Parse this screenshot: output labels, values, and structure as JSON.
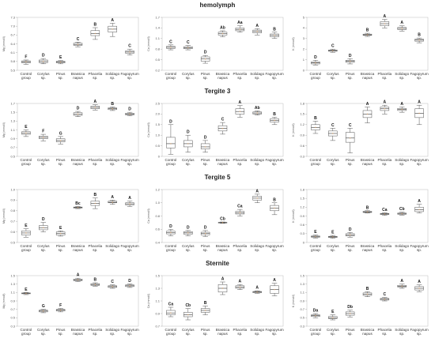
{
  "sections": [
    {
      "title": "hemolymph"
    },
    {
      "title": "Tergite 3"
    },
    {
      "title": "Tergite 5"
    },
    {
      "title": "Sternite"
    }
  ],
  "chart_data": [
    {
      "type": "box",
      "row": 0,
      "col": 0,
      "ylabel": "Mg (mmol/l)",
      "ylim": [
        5.5,
        7.3
      ],
      "yticks": [
        "5.5",
        "5.8",
        "6.1",
        "6.4",
        "6.7",
        "7.0",
        "7.3"
      ],
      "categories": [
        "Control group",
        "Corylus sp.",
        "Pinus sp.",
        "Brassica napus",
        "Phacelia sp.",
        "Solidago sp.",
        "Fagopyrum sp."
      ],
      "boxes": [
        {
          "min": 5.7,
          "q1": 5.75,
          "median": 5.79,
          "q3": 5.82,
          "max": 5.85
        },
        {
          "min": 5.72,
          "q1": 5.76,
          "median": 5.8,
          "q3": 5.85,
          "max": 5.9
        },
        {
          "min": 5.72,
          "q1": 5.75,
          "median": 5.78,
          "q3": 5.81,
          "max": 5.83
        },
        {
          "min": 6.3,
          "q1": 6.35,
          "median": 6.38,
          "q3": 6.42,
          "max": 6.46
        },
        {
          "min": 6.55,
          "q1": 6.68,
          "median": 6.75,
          "q3": 6.85,
          "max": 6.95
        },
        {
          "min": 6.65,
          "q1": 6.8,
          "median": 6.9,
          "q3": 7.0,
          "max": 7.1
        },
        {
          "min": 6.02,
          "q1": 6.08,
          "median": 6.12,
          "q3": 6.16,
          "max": 6.22
        }
      ],
      "letters": [
        "F",
        "D",
        "E",
        "C",
        "B",
        "A",
        "C"
      ]
    },
    {
      "type": "box",
      "row": 0,
      "col": 1,
      "ylabel": "Ca (mmol/l)",
      "ylim": [
        0.2,
        1.7
      ],
      "yticks": [
        "0.2",
        "0.5",
        "0.8",
        "1.1",
        "1.4",
        "1.7"
      ],
      "categories": [
        "Control group",
        "Corylus sp.",
        "Pinus sp.",
        "Brassica napus",
        "Phacelia sp.",
        "Solidago sp.",
        "Fagopyrum sp."
      ],
      "boxes": [
        {
          "min": 0.78,
          "q1": 0.82,
          "median": 0.85,
          "q3": 0.88,
          "max": 0.92
        },
        {
          "min": 0.78,
          "q1": 0.81,
          "median": 0.84,
          "q3": 0.87,
          "max": 0.9
        },
        {
          "min": 0.4,
          "q1": 0.46,
          "median": 0.52,
          "q3": 0.58,
          "max": 0.62
        },
        {
          "min": 1.15,
          "q1": 1.2,
          "median": 1.24,
          "q3": 1.28,
          "max": 1.32
        },
        {
          "min": 1.28,
          "q1": 1.32,
          "median": 1.36,
          "q3": 1.4,
          "max": 1.46
        },
        {
          "min": 1.2,
          "q1": 1.26,
          "median": 1.3,
          "q3": 1.34,
          "max": 1.38
        },
        {
          "min": 1.1,
          "q1": 1.15,
          "median": 1.19,
          "q3": 1.23,
          "max": 1.28
        }
      ],
      "letters": [
        "C",
        "C",
        "D",
        "Ab",
        "Aa",
        "A",
        "B"
      ]
    },
    {
      "type": "box",
      "row": 0,
      "col": 2,
      "ylabel": "K (mmol/l)",
      "ylim": [
        0,
        5
      ],
      "yticks": [
        "0",
        "1",
        "2",
        "3",
        "4",
        "5"
      ],
      "categories": [
        "Control group",
        "Corylus sp.",
        "Pinus sp.",
        "Brassica napus",
        "Phacelia sp.",
        "Solidago sp.",
        "Fagopyrum sp."
      ],
      "boxes": [
        {
          "min": 0.5,
          "q1": 0.6,
          "median": 0.7,
          "q3": 0.8,
          "max": 0.95
        },
        {
          "min": 1.7,
          "q1": 1.8,
          "median": 1.86,
          "q3": 1.92,
          "max": 2.0
        },
        {
          "min": 0.6,
          "q1": 0.75,
          "median": 0.85,
          "q3": 0.95,
          "max": 1.1
        },
        {
          "min": 3.2,
          "q1": 3.3,
          "median": 3.35,
          "q3": 3.42,
          "max": 3.5
        },
        {
          "min": 4.0,
          "q1": 4.2,
          "median": 4.4,
          "q3": 4.6,
          "max": 4.8
        },
        {
          "min": 3.7,
          "q1": 3.85,
          "median": 3.95,
          "q3": 4.05,
          "max": 4.2
        },
        {
          "min": 2.6,
          "q1": 2.75,
          "median": 2.85,
          "q3": 2.95,
          "max": 3.05
        }
      ],
      "letters": [
        "D",
        "C",
        "D",
        "B",
        "A",
        "A",
        "B"
      ]
    },
    {
      "type": "box",
      "row": 1,
      "col": 0,
      "ylabel": "Mg (mmol/l)",
      "ylim": [
        0.5,
        1.7
      ],
      "yticks": [
        "0.5",
        "0.7",
        "0.9",
        "1.1",
        "1.3",
        "1.5",
        "1.7"
      ],
      "categories": [
        "Control group",
        "Corylus sp.",
        "Pinus sp.",
        "Brassica napus",
        "Phacelia sp.",
        "Solidago sp.",
        "Fagopyrum sp."
      ],
      "boxes": [
        {
          "min": 0.95,
          "q1": 1.0,
          "median": 1.03,
          "q3": 1.06,
          "max": 1.1
        },
        {
          "min": 0.85,
          "q1": 0.9,
          "median": 0.93,
          "q3": 0.96,
          "max": 1.0
        },
        {
          "min": 0.78,
          "q1": 0.83,
          "median": 0.86,
          "q3": 0.9,
          "max": 0.95
        },
        {
          "min": 1.4,
          "q1": 1.43,
          "median": 1.46,
          "q3": 1.49,
          "max": 1.52
        },
        {
          "min": 1.55,
          "q1": 1.58,
          "median": 1.61,
          "q3": 1.64,
          "max": 1.67
        },
        {
          "min": 1.54,
          "q1": 1.56,
          "median": 1.58,
          "q3": 1.6,
          "max": 1.62
        },
        {
          "min": 1.42,
          "q1": 1.44,
          "median": 1.46,
          "q3": 1.48,
          "max": 1.5
        }
      ],
      "letters": [
        "E",
        "F",
        "G",
        "D",
        "A",
        "B",
        "D"
      ]
    },
    {
      "type": "box",
      "row": 1,
      "col": 1,
      "ylabel": "Ca (mmol/l)",
      "ylim": [
        0,
        2.5
      ],
      "yticks": [
        "0",
        "0.5",
        "1.0",
        "1.5",
        "2.0",
        "2.5"
      ],
      "categories": [
        "Control group",
        "Corylus sp.",
        "Pinus sp.",
        "Brassica napus",
        "Phacelia sp.",
        "Solidago sp.",
        "Fagopyrum sp."
      ],
      "boxes": [
        {
          "min": 0.1,
          "q1": 0.4,
          "median": 0.6,
          "q3": 0.9,
          "max": 1.5
        },
        {
          "min": 0.2,
          "q1": 0.45,
          "median": 0.6,
          "q3": 0.75,
          "max": 1.0
        },
        {
          "min": 0.2,
          "q1": 0.35,
          "median": 0.45,
          "q3": 0.6,
          "max": 0.75
        },
        {
          "min": 1.05,
          "q1": 1.2,
          "median": 1.32,
          "q3": 1.45,
          "max": 1.6
        },
        {
          "min": 1.85,
          "q1": 2.0,
          "median": 2.12,
          "q3": 2.25,
          "max": 2.4
        },
        {
          "min": 1.95,
          "q1": 2.0,
          "median": 2.05,
          "q3": 2.1,
          "max": 2.15
        },
        {
          "min": 1.5,
          "q1": 1.62,
          "median": 1.7,
          "q3": 1.78,
          "max": 1.85
        }
      ],
      "letters": [
        "D",
        "D",
        "D",
        "C",
        "A",
        "Ab",
        "B"
      ]
    },
    {
      "type": "box",
      "row": 1,
      "col": 2,
      "ylabel": "K (mmol/l)",
      "ylim": [
        0.3,
        1.8
      ],
      "yticks": [
        "0.3",
        "0.6",
        "0.9",
        "1.2",
        "1.5",
        "1.8"
      ],
      "categories": [
        "Control group",
        "Corylus sp.",
        "Pinus sp.",
        "Brassica napus",
        "Phacelia sp.",
        "Solidago sp.",
        "Fagopyrum sp."
      ],
      "boxes": [
        {
          "min": 0.95,
          "q1": 1.05,
          "median": 1.12,
          "q3": 1.2,
          "max": 1.3
        },
        {
          "min": 0.75,
          "q1": 0.88,
          "median": 0.95,
          "q3": 1.02,
          "max": 1.1
        },
        {
          "min": 0.4,
          "q1": 0.7,
          "median": 0.82,
          "q3": 0.98,
          "max": 1.1
        },
        {
          "min": 1.25,
          "q1": 1.4,
          "median": 1.5,
          "q3": 1.6,
          "max": 1.7
        },
        {
          "min": 1.5,
          "q1": 1.6,
          "median": 1.65,
          "q3": 1.7,
          "max": 1.75
        },
        {
          "min": 1.55,
          "q1": 1.6,
          "median": 1.63,
          "q3": 1.66,
          "max": 1.7
        },
        {
          "min": 1.2,
          "q1": 1.4,
          "median": 1.52,
          "q3": 1.65,
          "max": 1.75
        }
      ],
      "letters": [
        "B",
        "C",
        "C",
        "A",
        "A",
        "A",
        "A"
      ]
    },
    {
      "type": "box",
      "row": 2,
      "col": 0,
      "ylabel": "Mg (mmol/l)",
      "ylim": [
        0.5,
        1.0
      ],
      "yticks": [
        "0.5",
        "0.6",
        "0.7",
        "0.8",
        "0.9",
        "1.0"
      ],
      "categories": [
        "Control group",
        "Corylus sp.",
        "Pinus sp.",
        "Brassica napus",
        "Phacelia sp.",
        "Solidago sp.",
        "Fagopyrum sp."
      ],
      "boxes": [
        {
          "min": 0.55,
          "q1": 0.57,
          "median": 0.59,
          "q3": 0.61,
          "max": 0.63
        },
        {
          "min": 0.6,
          "q1": 0.62,
          "median": 0.64,
          "q3": 0.66,
          "max": 0.69
        },
        {
          "min": 0.56,
          "q1": 0.57,
          "median": 0.585,
          "q3": 0.6,
          "max": 0.61
        },
        {
          "min": 0.82,
          "q1": 0.825,
          "median": 0.83,
          "q3": 0.835,
          "max": 0.84
        },
        {
          "min": 0.82,
          "q1": 0.85,
          "median": 0.87,
          "q3": 0.89,
          "max": 0.92
        },
        {
          "min": 0.86,
          "q1": 0.875,
          "median": 0.88,
          "q3": 0.89,
          "max": 0.9
        },
        {
          "min": 0.84,
          "q1": 0.855,
          "median": 0.865,
          "q3": 0.875,
          "max": 0.89
        }
      ],
      "letters": [
        "E",
        "D",
        "E",
        "Bc",
        "B",
        "A",
        "A"
      ]
    },
    {
      "type": "box",
      "row": 2,
      "col": 1,
      "ylabel": "Ca (mmol/l)",
      "ylim": [
        0.4,
        1.2
      ],
      "yticks": [
        "0.4",
        "0.6",
        "0.8",
        "1.0",
        "1.2"
      ],
      "categories": [
        "Control group",
        "Corylus sp.",
        "Pinus sp.",
        "Brassica napus",
        "Phacelia sp.",
        "Solidago sp.",
        "Fagopyrum sp."
      ],
      "boxes": [
        {
          "min": 0.5,
          "q1": 0.53,
          "median": 0.55,
          "q3": 0.57,
          "max": 0.6
        },
        {
          "min": 0.5,
          "q1": 0.525,
          "median": 0.545,
          "q3": 0.565,
          "max": 0.58
        },
        {
          "min": 0.49,
          "q1": 0.515,
          "median": 0.535,
          "q3": 0.555,
          "max": 0.58
        },
        {
          "min": 0.69,
          "q1": 0.695,
          "median": 0.7,
          "q3": 0.705,
          "max": 0.71
        },
        {
          "min": 0.8,
          "q1": 0.83,
          "median": 0.85,
          "q3": 0.87,
          "max": 0.9
        },
        {
          "min": 1.0,
          "q1": 1.04,
          "median": 1.07,
          "q3": 1.1,
          "max": 1.13
        },
        {
          "min": 0.82,
          "q1": 0.88,
          "median": 0.92,
          "q3": 0.96,
          "max": 1.0
        }
      ],
      "letters": [
        "D",
        "D",
        "D",
        "Cb",
        "Ca",
        "A",
        "B"
      ]
    },
    {
      "type": "box",
      "row": 2,
      "col": 2,
      "ylabel": "K (mmol/l)",
      "ylim": [
        0,
        1.8
      ],
      "yticks": [
        "0",
        "0.3",
        "0.6",
        "0.9",
        "1.2",
        "1.5",
        "1.8"
      ],
      "categories": [
        "Control group",
        "Corylus sp.",
        "Pinus sp.",
        "Brassica napus",
        "Phacelia sp.",
        "Solidago sp.",
        "Fagopyrum sp."
      ],
      "boxes": [
        {
          "min": 0.15,
          "q1": 0.18,
          "median": 0.2,
          "q3": 0.22,
          "max": 0.25
        },
        {
          "min": 0.14,
          "q1": 0.17,
          "median": 0.19,
          "q3": 0.21,
          "max": 0.24
        },
        {
          "min": 0.18,
          "q1": 0.22,
          "median": 0.26,
          "q3": 0.3,
          "max": 0.34
        },
        {
          "min": 1.0,
          "q1": 1.02,
          "median": 1.04,
          "q3": 1.06,
          "max": 1.08
        },
        {
          "min": 0.92,
          "q1": 0.95,
          "median": 0.97,
          "q3": 0.99,
          "max": 1.01
        },
        {
          "min": 0.93,
          "q1": 0.96,
          "median": 0.98,
          "q3": 1.0,
          "max": 1.03
        },
        {
          "min": 1.0,
          "q1": 1.05,
          "median": 1.12,
          "q3": 1.2,
          "max": 1.3
        }
      ],
      "letters": [
        "E",
        "E",
        "D",
        "B",
        "Ca",
        "Cb",
        "A"
      ]
    },
    {
      "type": "box",
      "row": 3,
      "col": 0,
      "ylabel": "Mg (mmol/l)",
      "ylim": [
        0.3,
        1.5
      ],
      "yticks": [
        "0.3",
        "0.5",
        "0.7",
        "0.9",
        "1.1",
        "1.3",
        "1.5"
      ],
      "categories": [
        "Control group",
        "Corylus sp.",
        "Pinus sp.",
        "Brassica napus",
        "Phacelia sp.",
        "Solidago sp.",
        "Fagopyrum sp."
      ],
      "boxes": [
        {
          "min": 1.05,
          "q1": 1.07,
          "median": 1.08,
          "q3": 1.09,
          "max": 1.1
        },
        {
          "min": 0.62,
          "q1": 0.64,
          "median": 0.66,
          "q3": 0.68,
          "max": 0.7
        },
        {
          "min": 0.64,
          "q1": 0.66,
          "median": 0.68,
          "q3": 0.7,
          "max": 0.72
        },
        {
          "min": 1.36,
          "q1": 1.38,
          "median": 1.4,
          "q3": 1.42,
          "max": 1.44
        },
        {
          "min": 1.25,
          "q1": 1.27,
          "median": 1.29,
          "q3": 1.31,
          "max": 1.33
        },
        {
          "min": 1.2,
          "q1": 1.22,
          "median": 1.24,
          "q3": 1.26,
          "max": 1.28
        },
        {
          "min": 1.22,
          "q1": 1.24,
          "median": 1.26,
          "q3": 1.28,
          "max": 1.3
        }
      ],
      "letters": [
        "E",
        "G",
        "F",
        "A",
        "B",
        "C",
        "D"
      ]
    },
    {
      "type": "box",
      "row": 3,
      "col": 1,
      "ylabel": "Ca (mmol/l)",
      "ylim": [
        0.7,
        1.5
      ],
      "yticks": [
        "0.7",
        "0.9",
        "1.1",
        "1.3",
        "1.5"
      ],
      "categories": [
        "Control group",
        "Corylus sp.",
        "Pinus sp.",
        "Brassica napus",
        "Phacelia sp.",
        "Solidago sp.",
        "Fagopyrum sp."
      ],
      "boxes": [
        {
          "min": 0.85,
          "q1": 0.88,
          "median": 0.91,
          "q3": 0.95,
          "max": 1.0
        },
        {
          "min": 0.8,
          "q1": 0.85,
          "median": 0.88,
          "q3": 0.92,
          "max": 0.98
        },
        {
          "min": 0.88,
          "q1": 0.92,
          "median": 0.95,
          "q3": 0.98,
          "max": 1.02
        },
        {
          "min": 1.2,
          "q1": 1.24,
          "median": 1.3,
          "q3": 1.36,
          "max": 1.4
        },
        {
          "min": 1.28,
          "q1": 1.3,
          "median": 1.32,
          "q3": 1.34,
          "max": 1.36
        },
        {
          "min": 1.22,
          "q1": 1.23,
          "median": 1.24,
          "q3": 1.25,
          "max": 1.26
        },
        {
          "min": 1.18,
          "q1": 1.22,
          "median": 1.28,
          "q3": 1.34,
          "max": 1.38
        }
      ],
      "letters": [
        "Ca",
        "Cb",
        "B",
        "A",
        "A",
        "A",
        "A"
      ]
    },
    {
      "type": "box",
      "row": 3,
      "col": 2,
      "ylabel": "K (mmol/l)",
      "ylim": [
        0.3,
        1.5
      ],
      "yticks": [
        "0.3",
        "0.5",
        "0.7",
        "0.9",
        "1.1",
        "1.3",
        "1.5"
      ],
      "categories": [
        "Control group",
        "Corylus sp.",
        "Pinus sp.",
        "Brassica napus",
        "Phacelia sp.",
        "Solidago sp.",
        "Fagopyrum sp."
      ],
      "boxes": [
        {
          "min": 0.5,
          "q1": 0.53,
          "median": 0.55,
          "q3": 0.57,
          "max": 0.6
        },
        {
          "min": 0.45,
          "q1": 0.48,
          "median": 0.5,
          "q3": 0.53,
          "max": 0.57
        },
        {
          "min": 0.52,
          "q1": 0.56,
          "median": 0.6,
          "q3": 0.64,
          "max": 0.68
        },
        {
          "min": 1.0,
          "q1": 1.03,
          "median": 1.06,
          "q3": 1.09,
          "max": 1.12
        },
        {
          "min": 0.9,
          "q1": 0.92,
          "median": 0.94,
          "q3": 0.96,
          "max": 0.98
        },
        {
          "min": 1.2,
          "q1": 1.23,
          "median": 1.25,
          "q3": 1.27,
          "max": 1.3
        },
        {
          "min": 1.12,
          "q1": 1.16,
          "median": 1.2,
          "q3": 1.24,
          "max": 1.28
        }
      ],
      "letters": [
        "Da",
        "E",
        "Db",
        "B",
        "C",
        "A",
        "A"
      ]
    }
  ]
}
